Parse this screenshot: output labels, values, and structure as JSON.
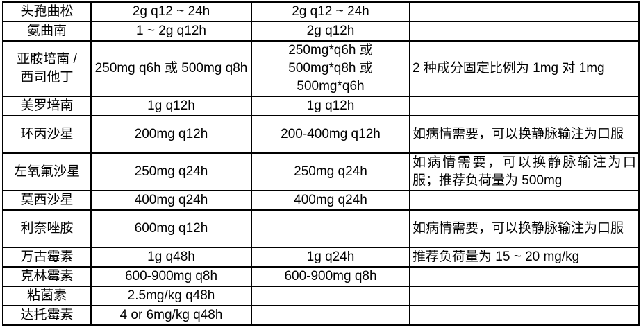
{
  "colors": {
    "border": "#000000",
    "text": "#000000",
    "background": "#ffffff"
  },
  "table": {
    "rows": [
      {
        "drug": "头孢曲松",
        "dose1": "2g q12 ~ 24h",
        "dose2": "2g q12 ~ 24h",
        "notes": ""
      },
      {
        "drug": "氨曲南",
        "dose1": "1 ~ 2g q12h",
        "dose2": "2g q12h",
        "notes": ""
      },
      {
        "drug": "亚胺培南 /\n西司他丁",
        "dose1": "250mg q6h 或 500mg q8h",
        "dose2": "250mg*q6h 或\n500mg*q8h 或\n500mg*q6h",
        "notes": "2 种成分固定比例为 1mg 对 1mg"
      },
      {
        "drug": "美罗培南",
        "dose1": "1g q12h",
        "dose2": "1g q12h",
        "notes": ""
      },
      {
        "drug": "环丙沙星",
        "dose1": "200mg q12h",
        "dose2": "200-400mg q12h",
        "notes": "如病情需要，可以换静脉输注为口服"
      },
      {
        "drug": "左氧氟沙星",
        "dose1": "250mg q24h",
        "dose2": "250mg q24h",
        "notes": "如病情需要，可以换静脉输注为口服；推荐负荷量为 500mg"
      },
      {
        "drug": "莫西沙星",
        "dose1": "400mg q24h",
        "dose2": "400mg q24h",
        "notes": ""
      },
      {
        "drug": "利奈唑胺",
        "dose1": "600mg q12h",
        "dose2": "",
        "notes": "如病情需要，可以换静脉输注为口服"
      },
      {
        "drug": "万古霉素",
        "dose1": "1g q48h",
        "dose2": "1g q24h",
        "notes": "推荐负荷量为 15 ~ 20 mg/kg"
      },
      {
        "drug": "克林霉素",
        "dose1": "600-900mg q8h",
        "dose2": "600-900mg q8h",
        "notes": ""
      },
      {
        "drug": "粘菌素",
        "dose1": "2.5mg/kg q48h",
        "dose2": "",
        "notes": ""
      },
      {
        "drug": "达托霉素",
        "dose1": "4 or 6mg/kg q48h",
        "dose2": "",
        "notes": ""
      }
    ]
  }
}
